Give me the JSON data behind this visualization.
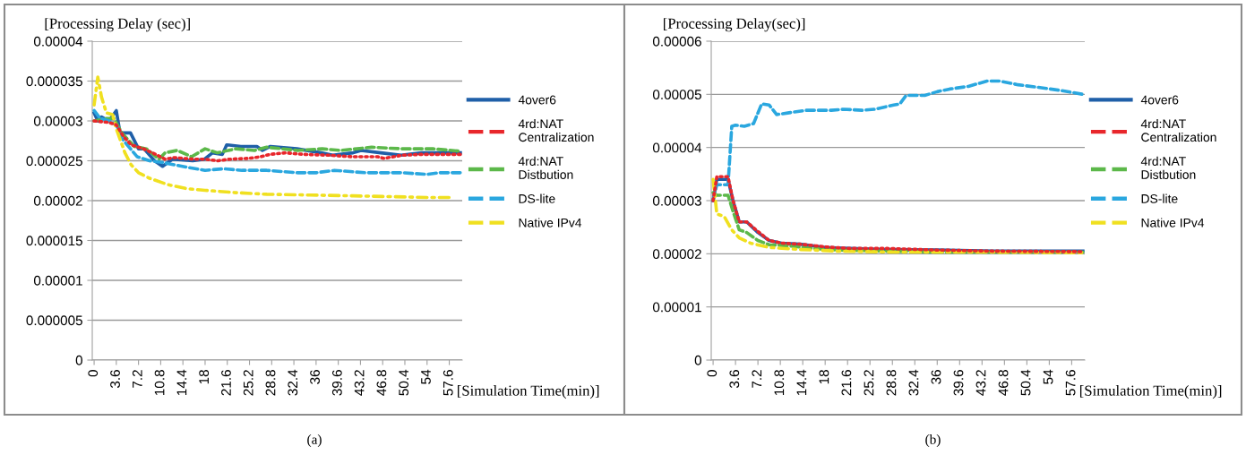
{
  "chart_data": [
    {
      "type": "line",
      "ylabel": "[Processing Delay (sec)]",
      "xlabel": "[Simulation Time(min)]",
      "annotations": [
        "(a)"
      ],
      "xlim": [
        -0.3,
        59.7
      ],
      "xticks": [
        {
          "value": 0,
          "label": "0"
        },
        {
          "value": 3.6,
          "label": "3.6"
        },
        {
          "value": 7.2,
          "label": "7.2"
        },
        {
          "value": 10.8,
          "label": "10.8"
        },
        {
          "value": 14.4,
          "label": "14.4"
        },
        {
          "value": 18,
          "label": "18"
        },
        {
          "value": 21.6,
          "label": "21.6"
        },
        {
          "value": 25.2,
          "label": "25.2"
        },
        {
          "value": 28.8,
          "label": "28.8"
        },
        {
          "value": 32.4,
          "label": "32.4"
        },
        {
          "value": 36,
          "label": "36"
        },
        {
          "value": 39.6,
          "label": "39.6"
        },
        {
          "value": 43.2,
          "label": "43.2"
        },
        {
          "value": 46.8,
          "label": "46.8"
        },
        {
          "value": 50.4,
          "label": "50.4"
        },
        {
          "value": 54,
          "label": "54"
        },
        {
          "value": 57.6,
          "label": "57.6"
        }
      ],
      "ylim": [
        0,
        4e-05
      ],
      "yticks": [
        {
          "value": 0,
          "label": "0"
        },
        {
          "value": 5e-06,
          "label": "0.000005"
        },
        {
          "value": 1e-05,
          "label": "0.00001"
        },
        {
          "value": 1.5e-05,
          "label": "0.000015"
        },
        {
          "value": 2e-05,
          "label": "0.00002"
        },
        {
          "value": 2.5e-05,
          "label": "0.000025"
        },
        {
          "value": 3e-05,
          "label": "0.00003"
        },
        {
          "value": 3.5e-05,
          "label": "0.000035"
        },
        {
          "value": 4e-05,
          "label": "0.00004"
        }
      ],
      "grid": "y",
      "legend": "right",
      "series": [
        {
          "name": "4over6",
          "color": "#1f5fa8",
          "line_style": "solid",
          "x": [
            0,
            0.6,
            1.2,
            2.4,
            3.6,
            4.2,
            5.9,
            7.2,
            8.1,
            9.8,
            11.1,
            12.7,
            16,
            17.9,
            19.2,
            20.8,
            21.5,
            23.8,
            26.4,
            27.3,
            28.6,
            32.9,
            36.8,
            38.7,
            42,
            43.3,
            46.5,
            49.8,
            53.1,
            59.4
          ],
          "values": [
            3.1e-05,
            3e-05,
            3.05e-05,
            3e-05,
            3.13e-05,
            2.85e-05,
            2.85e-05,
            2.65e-05,
            2.65e-05,
            2.5e-05,
            2.43e-05,
            2.52e-05,
            2.5e-05,
            2.52e-05,
            2.6e-05,
            2.58e-05,
            2.7e-05,
            2.68e-05,
            2.68e-05,
            2.63e-05,
            2.68e-05,
            2.65e-05,
            2.6e-05,
            2.57e-05,
            2.6e-05,
            2.63e-05,
            2.6e-05,
            2.57e-05,
            2.6e-05,
            2.6e-05
          ]
        },
        {
          "name": "4rd:NAT Centralization",
          "color": "#e8262b",
          "line_style": "dotted",
          "x": [
            0,
            2.4,
            3.6,
            4.8,
            6,
            8,
            10,
            11.5,
            13,
            16,
            18,
            20,
            22,
            25,
            27,
            28.5,
            31,
            34,
            38,
            42,
            46,
            47,
            50,
            53,
            59.4
          ],
          "values": [
            3e-05,
            2.98e-05,
            2.95e-05,
            2.8e-05,
            2.7e-05,
            2.65e-05,
            2.58e-05,
            2.52e-05,
            2.54e-05,
            2.52e-05,
            2.52e-05,
            2.5e-05,
            2.52e-05,
            2.53e-05,
            2.55e-05,
            2.58e-05,
            2.6e-05,
            2.58e-05,
            2.57e-05,
            2.55e-05,
            2.55e-05,
            2.53e-05,
            2.57e-05,
            2.58e-05,
            2.58e-05
          ]
        },
        {
          "name": "4rd:NAT Distbution",
          "color": "#5cb84a",
          "line_style": "dashed",
          "x": [
            0,
            2,
            3.2,
            4.5,
            6.5,
            8.5,
            10.5,
            11.5,
            13.5,
            15.8,
            18,
            20,
            23,
            26,
            28,
            33,
            37,
            40,
            45,
            50,
            55,
            59.4
          ],
          "values": [
            3e-05,
            3.03e-05,
            3.03e-05,
            2.85e-05,
            2.68e-05,
            2.65e-05,
            2.52e-05,
            2.6e-05,
            2.63e-05,
            2.55e-05,
            2.65e-05,
            2.6e-05,
            2.65e-05,
            2.63e-05,
            2.67e-05,
            2.63e-05,
            2.65e-05,
            2.63e-05,
            2.67e-05,
            2.65e-05,
            2.65e-05,
            2.62e-05
          ]
        },
        {
          "name": "DS-lite",
          "color": "#2aa7df",
          "line_style": "dashed",
          "x": [
            0,
            1,
            2.5,
            3.6,
            4.8,
            7,
            9,
            11,
            13,
            15,
            18,
            21,
            24,
            28,
            33,
            36,
            39,
            44,
            47,
            50,
            54,
            56,
            59.4
          ],
          "values": [
            3.13e-05,
            3.03e-05,
            3e-05,
            2.95e-05,
            2.75e-05,
            2.55e-05,
            2.5e-05,
            2.48e-05,
            2.45e-05,
            2.42e-05,
            2.38e-05,
            2.4e-05,
            2.38e-05,
            2.38e-05,
            2.35e-05,
            2.35e-05,
            2.38e-05,
            2.35e-05,
            2.35e-05,
            2.35e-05,
            2.33e-05,
            2.35e-05,
            2.35e-05
          ]
        },
        {
          "name": "Native IPv4",
          "color": "#f0e020",
          "line_style": "dashdot",
          "x": [
            0,
            0.6,
            1.2,
            2,
            3,
            3.6,
            5,
            6,
            7.2,
            9,
            12,
            15,
            18,
            23,
            28,
            35,
            42,
            48,
            54,
            57.6
          ],
          "values": [
            3.2e-05,
            3.55e-05,
            3.3e-05,
            3.1e-05,
            3.08e-05,
            2.9e-05,
            2.6e-05,
            2.45e-05,
            2.35e-05,
            2.28e-05,
            2.2e-05,
            2.15e-05,
            2.13e-05,
            2.1e-05,
            2.08e-05,
            2.07e-05,
            2.06e-05,
            2.05e-05,
            2.04e-05,
            2.04e-05
          ]
        }
      ]
    },
    {
      "type": "line",
      "ylabel": "[Processing Delay(sec)]",
      "xlabel": "[Simulation Time(min)]",
      "annotations": [
        "(b)"
      ],
      "xlim": [
        -0.3,
        59.7
      ],
      "xticks": [
        {
          "value": 0,
          "label": "0"
        },
        {
          "value": 3.6,
          "label": "3.6"
        },
        {
          "value": 7.2,
          "label": "7.2"
        },
        {
          "value": 10.8,
          "label": "10.8"
        },
        {
          "value": 14.4,
          "label": "14.4"
        },
        {
          "value": 18,
          "label": "18"
        },
        {
          "value": 21.6,
          "label": "21.6"
        },
        {
          "value": 25.2,
          "label": "25.2"
        },
        {
          "value": 28.8,
          "label": "28.8"
        },
        {
          "value": 32.4,
          "label": "32.4"
        },
        {
          "value": 36,
          "label": "36"
        },
        {
          "value": 39.6,
          "label": "39.6"
        },
        {
          "value": 43.2,
          "label": "43.2"
        },
        {
          "value": 46.8,
          "label": "46.8"
        },
        {
          "value": 50.4,
          "label": "50.4"
        },
        {
          "value": 54,
          "label": "54"
        },
        {
          "value": 57.6,
          "label": "57.6"
        }
      ],
      "ylim": [
        0,
        6e-05
      ],
      "yticks": [
        {
          "value": 0,
          "label": "0"
        },
        {
          "value": 1e-05,
          "label": "0.00001"
        },
        {
          "value": 2e-05,
          "label": "0.00002"
        },
        {
          "value": 3e-05,
          "label": "0.00003"
        },
        {
          "value": 4e-05,
          "label": "0.00004"
        },
        {
          "value": 5e-05,
          "label": "0.00005"
        },
        {
          "value": 6e-05,
          "label": "0.00006"
        }
      ],
      "grid": "y",
      "legend": "right",
      "series": [
        {
          "name": "4over6",
          "color": "#1f5fa8",
          "line_style": "solid",
          "x": [
            0,
            0.6,
            2.4,
            3.2,
            4.2,
            5.4,
            7.2,
            9,
            11,
            14,
            18,
            22,
            28,
            36,
            45,
            59.4
          ],
          "values": [
            3e-05,
            3.4e-05,
            3.4e-05,
            3e-05,
            2.6e-05,
            2.6e-05,
            2.4e-05,
            2.25e-05,
            2.2e-05,
            2.18e-05,
            2.12e-05,
            2.1e-05,
            2.08e-05,
            2.07e-05,
            2.05e-05,
            2.05e-05
          ]
        },
        {
          "name": "4rd:NAT Centralization",
          "color": "#e8262b",
          "line_style": "dotted",
          "x": [
            0,
            0.6,
            2.4,
            3.2,
            4.2,
            5.4,
            7.2,
            9,
            11,
            14,
            18,
            22,
            28,
            36,
            45,
            59.4
          ],
          "values": [
            3e-05,
            3.45e-05,
            3.45e-05,
            3e-05,
            2.6e-05,
            2.6e-05,
            2.42e-05,
            2.25e-05,
            2.2e-05,
            2.18e-05,
            2.13e-05,
            2.1e-05,
            2.1e-05,
            2.07e-05,
            2.05e-05,
            2.04e-05
          ]
        },
        {
          "name": "4rd:NAT Distbution",
          "color": "#5cb84a",
          "line_style": "dashed",
          "x": [
            0,
            0.6,
            2.4,
            3.2,
            4.2,
            5.4,
            7.2,
            9,
            12,
            16,
            20,
            28,
            36,
            59.4
          ],
          "values": [
            3.15e-05,
            3.1e-05,
            3.1e-05,
            2.8e-05,
            2.45e-05,
            2.4e-05,
            2.25e-05,
            2.17e-05,
            2.15e-05,
            2.1e-05,
            2.07e-05,
            2.05e-05,
            2.03e-05,
            2.03e-05
          ]
        },
        {
          "name": "DS-lite",
          "color": "#2aa7df",
          "line_style": "dashed",
          "x": [
            0,
            0.6,
            2.4,
            3,
            3.6,
            5,
            6.5,
            7.8,
            9,
            10.2,
            12,
            15,
            19,
            21,
            24,
            26,
            29,
            30,
            31,
            34,
            36,
            38,
            41,
            44,
            46,
            49,
            53,
            56,
            59.4
          ],
          "values": [
            3e-05,
            3.3e-05,
            3.3e-05,
            4.4e-05,
            4.42e-05,
            4.4e-05,
            4.45e-05,
            4.82e-05,
            4.8e-05,
            4.62e-05,
            4.65e-05,
            4.7e-05,
            4.7e-05,
            4.72e-05,
            4.7e-05,
            4.72e-05,
            4.8e-05,
            4.82e-05,
            4.98e-05,
            4.98e-05,
            5.05e-05,
            5.1e-05,
            5.15e-05,
            5.25e-05,
            5.25e-05,
            5.18e-05,
            5.12e-05,
            5.07e-05,
            5e-05
          ]
        },
        {
          "name": "Native IPv4",
          "color": "#f0e020",
          "line_style": "dashdot",
          "x": [
            0,
            0.6,
            1.8,
            3,
            4.2,
            6,
            9,
            14,
            20,
            30,
            45,
            59.4
          ],
          "values": [
            3.4e-05,
            2.75e-05,
            2.7e-05,
            2.45e-05,
            2.3e-05,
            2.2e-05,
            2.12e-05,
            2.08e-05,
            2.05e-05,
            2.03e-05,
            2.03e-05,
            2.02e-05
          ]
        }
      ]
    }
  ]
}
